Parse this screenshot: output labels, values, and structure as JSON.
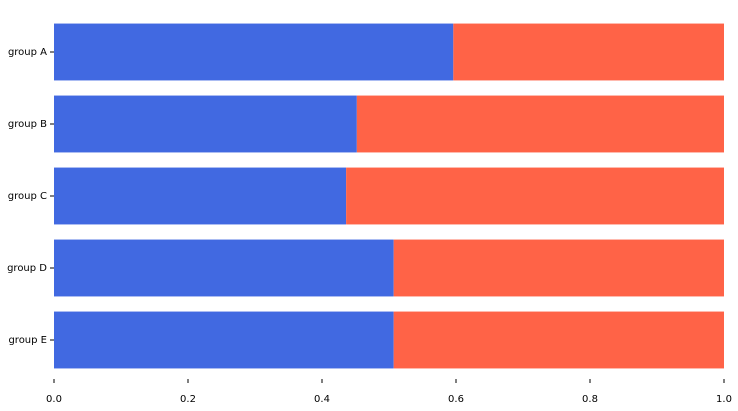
{
  "chart_data": {
    "type": "stacked-barh",
    "categories": [
      "group A",
      "group B",
      "group C",
      "group D",
      "group E"
    ],
    "series": [
      {
        "color": "#4169e1",
        "values": [
          0.596,
          0.452,
          0.436,
          0.507,
          0.507
        ]
      },
      {
        "color": "#ff6347",
        "values": [
          0.404,
          0.548,
          0.564,
          0.493,
          0.493
        ]
      }
    ],
    "xlim": [
      0,
      1
    ],
    "xticks": [
      {
        "value": 0,
        "label": "0.0"
      },
      0.2,
      0.4,
      0.6,
      0.8,
      {
        "value": 1,
        "label": "1.0"
      }
    ]
  }
}
